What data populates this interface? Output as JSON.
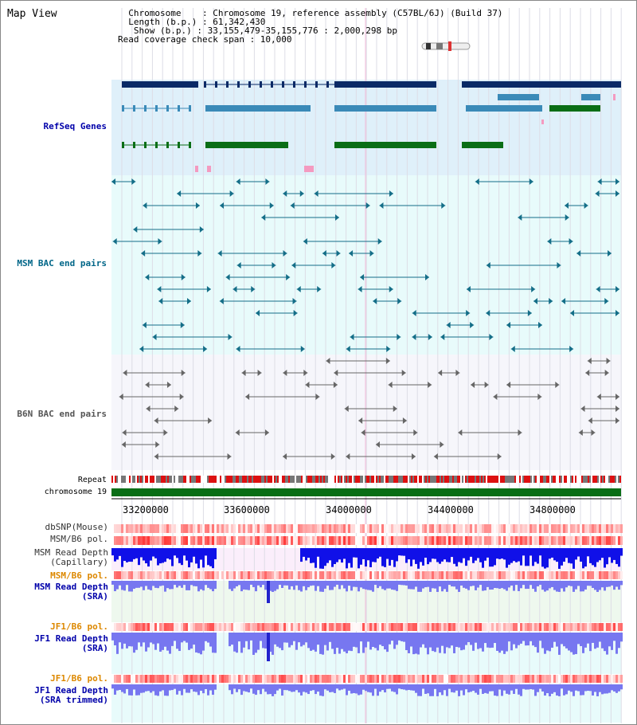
{
  "title": "Map View",
  "info": {
    "chromosome": "  Chromosome    : Chromosome 19, reference assembly (C57BL/6J) (Build 37)",
    "length": "  Length (b.p.) : 61,342,430",
    "show": "   Show (b.p.) : 33,155,479-35,155,776 : 2,000,298 bp",
    "coverage_span": "Read coverage check span : 10,000"
  },
  "tracks": {
    "refseq": "RefSeq Genes",
    "msm_bac": "MSM BAC end pairs",
    "b6n_bac": "B6N BAC end pairs",
    "repeat": "Repeat",
    "chromosome": "chromosome 19",
    "dbsnp": "dbSNP(Mouse)",
    "msm_b6_pol": "MSM/B6 pol.",
    "msm_depth_cap": "MSM Read Depth\n(Capillary)",
    "msm_b6_pol2": "MSM/B6 pol.",
    "msm_depth_sra": "MSM Read Depth\n(SRA)",
    "jf1_b6_pol": "JF1/B6 pol.",
    "jf1_depth_sra": "JF1 Read Depth\n(SRA)",
    "jf1_b6_pol2": "JF1/B6 pol.",
    "jf1_depth_trim": "JF1 Read Depth\n(SRA trimmed)"
  },
  "axis": [
    "33200000",
    "33600000",
    "34000000",
    "34400000",
    "34800000"
  ],
  "colors": {
    "refseq_bg": "#dff0fa",
    "msm_bac_bg": "#e8fbfb",
    "b6n_bg": "#f6f6fb",
    "gene_dark": "#0a2a66",
    "gene_mid": "#3a8ab8",
    "gene_green": "#0a6e16",
    "chromosome": "#0a6e16",
    "depth_blue": "#1010e8",
    "depth_light": "#7777f0"
  }
}
